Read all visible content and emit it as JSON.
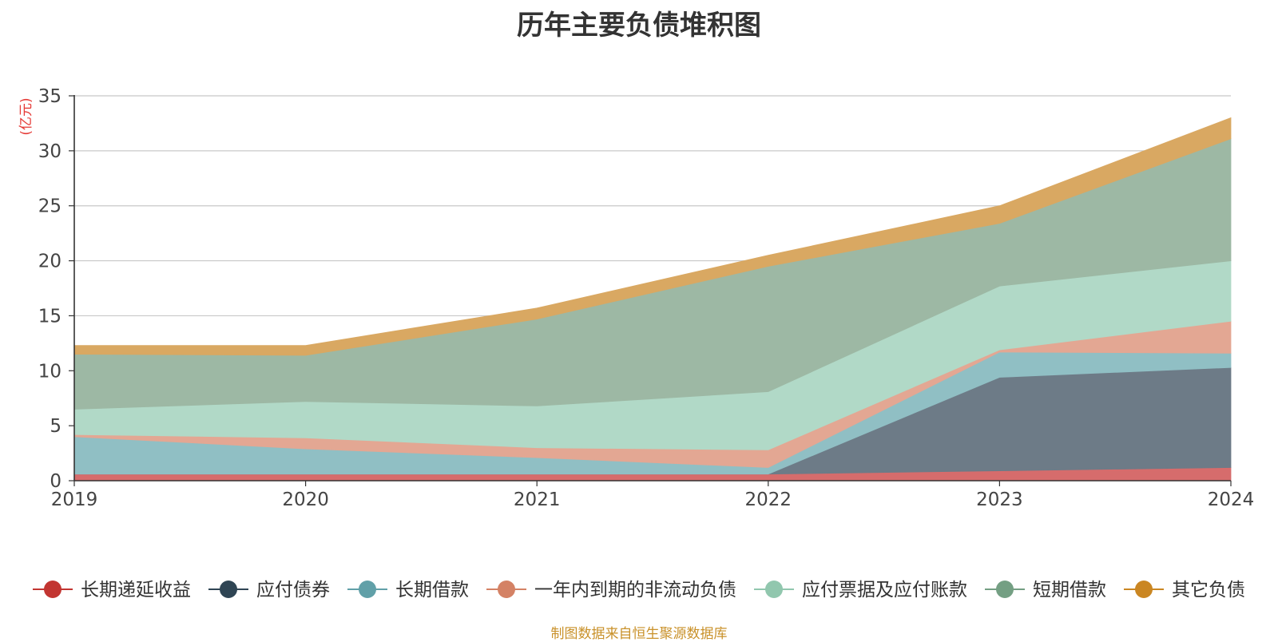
{
  "chart_data": {
    "type": "area",
    "stacked": true,
    "title": "历年主要负债堆积图",
    "ylabel": "(亿元)",
    "xlabel": "",
    "x": [
      "2019",
      "2020",
      "2021",
      "2022",
      "2023",
      "2024"
    ],
    "ylim": [
      0,
      35
    ],
    "yticks": [
      0,
      5,
      10,
      15,
      20,
      25,
      30,
      35
    ],
    "grid": true,
    "legend_position": "bottom",
    "series": [
      {
        "name": "长期递延收益",
        "color": "#c23531",
        "fill": "#d66c6c",
        "values": [
          0.6,
          0.6,
          0.6,
          0.6,
          0.9,
          1.2
        ]
      },
      {
        "name": "应付债券",
        "color": "#2f4554",
        "fill": "#6d7b87",
        "values": [
          0.0,
          0.0,
          0.0,
          0.0,
          8.5,
          9.1
        ]
      },
      {
        "name": "长期借款",
        "color": "#61a0a8",
        "fill": "#90bfc4",
        "values": [
          3.4,
          2.3,
          1.5,
          0.6,
          2.3,
          1.3
        ]
      },
      {
        "name": "一年内到期的非流动负债",
        "color": "#d48265",
        "fill": "#e3a793",
        "values": [
          0.2,
          1.0,
          0.9,
          1.6,
          0.2,
          2.9
        ]
      },
      {
        "name": "应付票据及应付账款",
        "color": "#91c7ae",
        "fill": "#b1d9c7",
        "values": [
          2.3,
          3.3,
          3.8,
          5.3,
          5.8,
          5.5
        ]
      },
      {
        "name": "短期借款",
        "color": "#749f83",
        "fill": "#9db8a4",
        "values": [
          5.0,
          4.2,
          7.9,
          11.4,
          5.7,
          11.1
        ]
      },
      {
        "name": "其它负债",
        "color": "#ca8622",
        "fill": "#d9a862",
        "values": [
          0.8,
          0.9,
          1.0,
          1.0,
          1.6,
          1.9
        ]
      }
    ]
  },
  "source_note": "制图数据来自恒生聚源数据库"
}
